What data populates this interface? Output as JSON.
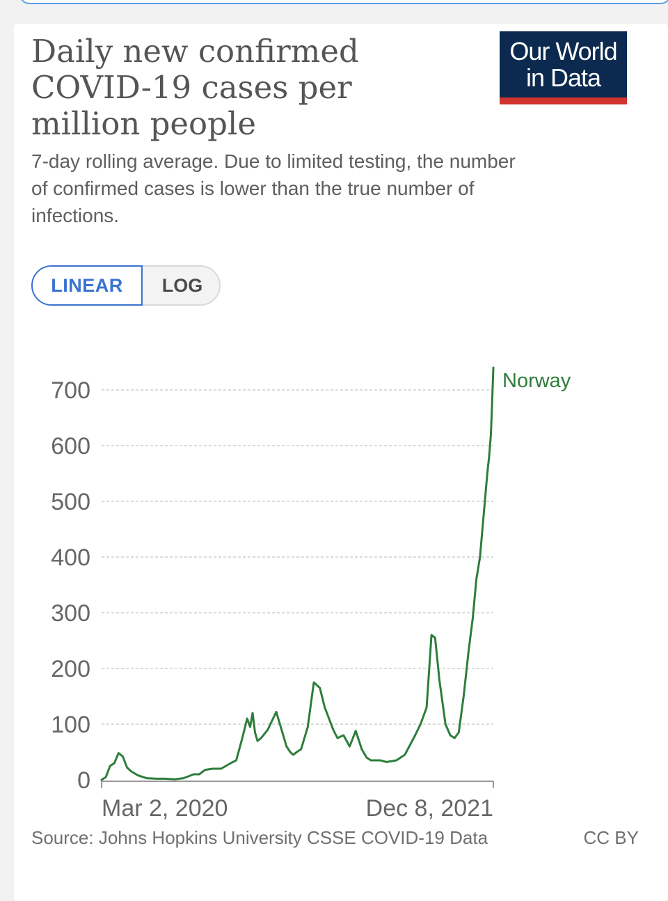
{
  "header": {
    "title": "Daily new confirmed COVID-19 cases per million people",
    "subtitle": "7-day rolling average. Due to limited testing, the number of confirmed cases is lower than the true number of infections."
  },
  "logo": {
    "line1": "Our World",
    "line2": "in Data"
  },
  "scale_toggle": {
    "linear_label": "LINEAR",
    "log_label": "LOG",
    "selected": "LINEAR"
  },
  "footer": {
    "source": "Source: Johns Hopkins University CSSE COVID-19 Data",
    "license": "CC BY"
  },
  "colors": {
    "line": "#2e7d3c",
    "logo_bg": "#0c2a4f",
    "logo_accent": "#d1332f",
    "toggle_active": "#3b73d1"
  },
  "chart_data": {
    "type": "line",
    "title": "Daily new confirmed COVID-19 cases per million people",
    "subtitle": "7-day rolling average. Due to limited testing, the number of confirmed cases is lower than the true number of infections.",
    "xlabel": "",
    "ylabel": "",
    "ylim": [
      0,
      700
    ],
    "yticks": [
      0,
      100,
      200,
      300,
      400,
      500,
      600,
      700
    ],
    "xtick_labels": [
      "Mar 2, 2020",
      "Dec 8, 2021"
    ],
    "x_range": [
      "2020-03-02",
      "2021-12-08"
    ],
    "grid": "horizontal-dashed",
    "legend": "end-of-line label",
    "series": [
      {
        "name": "Norway",
        "x": [
          "2020-03-02",
          "2020-03-09",
          "2020-03-16",
          "2020-03-23",
          "2020-03-30",
          "2020-04-06",
          "2020-04-13",
          "2020-04-20",
          "2020-05-01",
          "2020-05-15",
          "2020-06-01",
          "2020-06-15",
          "2020-07-01",
          "2020-07-15",
          "2020-08-01",
          "2020-08-10",
          "2020-08-20",
          "2020-09-01",
          "2020-09-15",
          "2020-10-01",
          "2020-10-10",
          "2020-10-20",
          "2020-10-28",
          "2020-11-02",
          "2020-11-06",
          "2020-11-10",
          "2020-11-14",
          "2020-11-20",
          "2020-12-01",
          "2020-12-15",
          "2021-01-01",
          "2021-01-07",
          "2021-01-12",
          "2021-01-18",
          "2021-01-25",
          "2021-02-05",
          "2021-02-15",
          "2021-02-25",
          "2021-03-05",
          "2021-03-12",
          "2021-03-19",
          "2021-03-26",
          "2021-04-05",
          "2021-04-15",
          "2021-04-25",
          "2021-05-05",
          "2021-05-13",
          "2021-05-20",
          "2021-05-27",
          "2021-06-05",
          "2021-06-15",
          "2021-07-01",
          "2021-07-15",
          "2021-08-01",
          "2021-08-10",
          "2021-08-20",
          "2021-08-28",
          "2021-09-03",
          "2021-09-10",
          "2021-09-20",
          "2021-09-28",
          "2021-10-05",
          "2021-10-12",
          "2021-10-20",
          "2021-10-28",
          "2021-11-04",
          "2021-11-10",
          "2021-11-16",
          "2021-11-20",
          "2021-11-24",
          "2021-11-28",
          "2021-12-01",
          "2021-12-04",
          "2021-12-06",
          "2021-12-08"
        ],
        "y": [
          0,
          5,
          25,
          30,
          48,
          42,
          22,
          15,
          8,
          3,
          2,
          2,
          1,
          3,
          10,
          10,
          18,
          20,
          20,
          30,
          35,
          75,
          110,
          95,
          120,
          85,
          70,
          75,
          90,
          122,
          60,
          50,
          45,
          50,
          55,
          95,
          175,
          165,
          130,
          110,
          90,
          75,
          80,
          60,
          88,
          55,
          40,
          35,
          35,
          35,
          32,
          35,
          45,
          80,
          100,
          130,
          260,
          255,
          180,
          100,
          80,
          75,
          85,
          150,
          230,
          290,
          360,
          400,
          450,
          500,
          550,
          580,
          620,
          680,
          740
        ]
      }
    ]
  }
}
